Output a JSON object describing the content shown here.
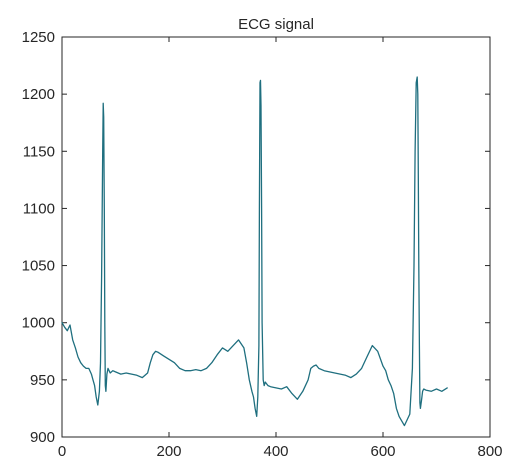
{
  "chart_data": {
    "type": "line",
    "title": "ECG signal",
    "xlabel": "",
    "ylabel": "",
    "xlim": [
      0,
      800
    ],
    "ylim": [
      900,
      1250
    ],
    "xticks": [
      0,
      200,
      400,
      600,
      800
    ],
    "yticks": [
      900,
      950,
      1000,
      1050,
      1100,
      1150,
      1200,
      1250
    ],
    "grid": false,
    "line_color": "#1f6f7f",
    "series": [
      {
        "x": [
          0,
          5,
          10,
          15,
          20,
          25,
          30,
          35,
          40,
          45,
          50,
          55,
          58,
          61,
          64,
          67,
          70,
          72,
          74,
          76,
          77,
          78,
          79,
          80,
          81,
          82,
          84,
          86,
          88,
          90,
          95,
          100,
          110,
          120,
          130,
          140,
          150,
          160,
          165,
          170,
          175,
          180,
          190,
          200,
          210,
          220,
          230,
          240,
          250,
          260,
          270,
          280,
          290,
          300,
          310,
          320,
          330,
          340,
          345,
          350,
          355,
          358,
          361,
          364,
          366,
          368,
          369,
          370,
          371,
          372,
          373,
          374,
          376,
          378,
          380,
          385,
          390,
          400,
          410,
          420,
          430,
          440,
          450,
          460,
          465,
          470,
          475,
          480,
          490,
          500,
          510,
          520,
          530,
          540,
          550,
          560,
          570,
          580,
          590,
          600,
          605,
          610,
          615,
          620,
          625,
          630,
          640,
          650,
          655,
          658,
          660,
          662,
          664,
          665,
          666,
          667,
          668,
          669,
          670,
          672,
          674,
          676,
          680,
          690,
          700,
          710,
          720
        ],
        "y": [
          1000,
          996,
          993,
          998,
          985,
          978,
          970,
          965,
          962,
          960,
          960,
          955,
          950,
          945,
          935,
          928,
          940,
          965,
          1040,
          1150,
          1192,
          1180,
          1100,
          1000,
          945,
          940,
          955,
          960,
          958,
          956,
          958,
          957,
          955,
          956,
          955,
          954,
          952,
          956,
          965,
          972,
          975,
          974,
          971,
          968,
          965,
          960,
          958,
          958,
          959,
          958,
          960,
          965,
          972,
          978,
          975,
          980,
          985,
          978,
          965,
          950,
          940,
          935,
          925,
          918,
          935,
          980,
          1100,
          1210,
          1212,
          1190,
          1100,
          1000,
          950,
          945,
          948,
          945,
          944,
          943,
          942,
          944,
          938,
          933,
          940,
          950,
          960,
          962,
          963,
          960,
          958,
          957,
          956,
          955,
          954,
          952,
          955,
          960,
          970,
          980,
          975,
          962,
          958,
          950,
          945,
          938,
          925,
          918,
          910,
          920,
          960,
          1050,
          1150,
          1210,
          1215,
          1200,
          1130,
          1050,
          980,
          930,
          925,
          932,
          940,
          942,
          941,
          940,
          942,
          940,
          943
        ]
      }
    ]
  }
}
